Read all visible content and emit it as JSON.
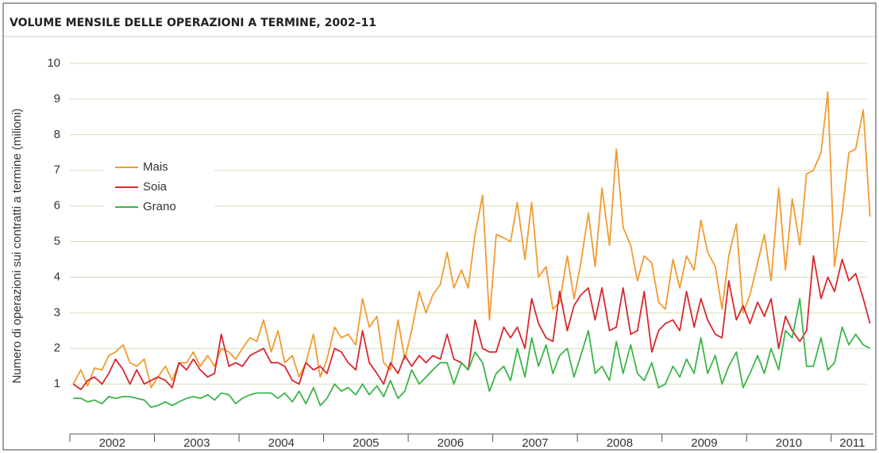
{
  "chart_data": {
    "type": "line",
    "title": "VOLUME MENSILE DELLE OPERAZIONI A TERMINE, 2002–11",
    "y_label": "Numero di operazioni sui contratti a termine (milioni)",
    "x": [
      2002.04,
      2002.13,
      2002.21,
      2002.29,
      2002.38,
      2002.46,
      2002.54,
      2002.63,
      2002.71,
      2002.79,
      2002.88,
      2002.96,
      2003.04,
      2003.13,
      2003.21,
      2003.29,
      2003.38,
      2003.46,
      2003.54,
      2003.63,
      2003.71,
      2003.79,
      2003.88,
      2003.96,
      2004.04,
      2004.13,
      2004.21,
      2004.29,
      2004.38,
      2004.46,
      2004.54,
      2004.63,
      2004.71,
      2004.79,
      2004.88,
      2004.96,
      2005.04,
      2005.13,
      2005.21,
      2005.29,
      2005.38,
      2005.46,
      2005.54,
      2005.63,
      2005.71,
      2005.79,
      2005.88,
      2005.96,
      2006.04,
      2006.13,
      2006.21,
      2006.29,
      2006.38,
      2006.46,
      2006.54,
      2006.63,
      2006.71,
      2006.79,
      2006.88,
      2006.96,
      2007.04,
      2007.13,
      2007.21,
      2007.29,
      2007.38,
      2007.46,
      2007.54,
      2007.63,
      2007.71,
      2007.79,
      2007.88,
      2007.96,
      2008.04,
      2008.13,
      2008.21,
      2008.29,
      2008.38,
      2008.46,
      2008.54,
      2008.63,
      2008.71,
      2008.79,
      2008.88,
      2008.96,
      2009.04,
      2009.13,
      2009.21,
      2009.29,
      2009.38,
      2009.46,
      2009.54,
      2009.63,
      2009.71,
      2009.79,
      2009.88,
      2009.96,
      2010.04,
      2010.13,
      2010.21,
      2010.29,
      2010.38,
      2010.46,
      2010.54,
      2010.63,
      2010.71,
      2010.79,
      2010.88,
      2010.96,
      2011.04,
      2011.13,
      2011.21,
      2011.29,
      2011.38,
      2011.46
    ],
    "series": [
      {
        "name": "Mais",
        "color": "#f29b30",
        "values": [
          1.0,
          1.4,
          0.95,
          1.45,
          1.4,
          1.8,
          1.9,
          2.1,
          1.6,
          1.5,
          1.7,
          0.9,
          1.2,
          1.5,
          1.1,
          1.6,
          1.6,
          1.9,
          1.5,
          1.8,
          1.5,
          2.0,
          1.9,
          1.7,
          2.0,
          2.3,
          2.2,
          2.8,
          1.9,
          2.5,
          1.6,
          1.8,
          1.2,
          1.6,
          2.4,
          1.2,
          1.7,
          2.6,
          2.3,
          2.4,
          2.1,
          3.4,
          2.6,
          2.9,
          1.6,
          1.4,
          2.8,
          1.7,
          2.5,
          3.6,
          3.0,
          3.5,
          3.8,
          4.7,
          3.7,
          4.2,
          3.7,
          5.2,
          6.3,
          2.8,
          5.2,
          5.1,
          5.0,
          6.1,
          4.5,
          6.1,
          4.0,
          4.3,
          3.1,
          3.3,
          4.6,
          3.4,
          4.4,
          5.8,
          4.3,
          6.5,
          4.9,
          7.6,
          5.4,
          4.9,
          3.9,
          4.6,
          4.4,
          3.3,
          3.1,
          4.5,
          3.7,
          4.6,
          4.2,
          5.6,
          4.7,
          4.3,
          3.1,
          4.6,
          5.5,
          3.0,
          3.5,
          4.4,
          5.2,
          3.9,
          6.5,
          4.2,
          6.2,
          4.9,
          6.9,
          7.0,
          7.5,
          9.2,
          4.3,
          5.8,
          7.5,
          7.6,
          8.7,
          5.7
        ]
      },
      {
        "name": "Soia",
        "color": "#d9282f",
        "values": [
          1.0,
          0.85,
          1.1,
          1.2,
          1.0,
          1.3,
          1.7,
          1.4,
          1.0,
          1.4,
          1.0,
          1.1,
          1.2,
          1.1,
          0.9,
          1.6,
          1.4,
          1.7,
          1.4,
          1.2,
          1.3,
          2.4,
          1.5,
          1.6,
          1.5,
          1.8,
          1.9,
          2.0,
          1.6,
          1.6,
          1.5,
          1.1,
          1.0,
          1.6,
          1.4,
          1.5,
          1.3,
          2.0,
          1.9,
          1.6,
          1.4,
          2.5,
          1.6,
          1.3,
          1.0,
          1.6,
          1.3,
          1.8,
          1.5,
          1.8,
          1.6,
          1.8,
          1.7,
          2.4,
          1.7,
          1.6,
          1.4,
          2.8,
          2.0,
          1.9,
          1.9,
          2.6,
          2.3,
          2.6,
          2.0,
          3.4,
          2.7,
          2.3,
          2.2,
          3.6,
          2.5,
          3.2,
          3.5,
          3.7,
          2.8,
          3.7,
          2.5,
          2.6,
          3.7,
          2.4,
          2.5,
          3.6,
          1.9,
          2.5,
          2.7,
          2.8,
          2.5,
          3.6,
          2.6,
          3.4,
          2.8,
          2.4,
          2.3,
          3.9,
          2.8,
          3.2,
          2.7,
          3.3,
          2.9,
          3.4,
          2.0,
          2.9,
          2.5,
          2.2,
          2.5,
          4.6,
          3.4,
          4.0,
          3.6,
          4.5,
          3.9,
          4.1,
          3.4,
          2.7
        ]
      },
      {
        "name": "Grano",
        "color": "#3cb44b",
        "values": [
          0.6,
          0.6,
          0.5,
          0.55,
          0.45,
          0.65,
          0.6,
          0.65,
          0.65,
          0.6,
          0.55,
          0.35,
          0.4,
          0.5,
          0.4,
          0.5,
          0.6,
          0.65,
          0.6,
          0.7,
          0.55,
          0.75,
          0.7,
          0.45,
          0.6,
          0.7,
          0.75,
          0.75,
          0.75,
          0.6,
          0.75,
          0.5,
          0.8,
          0.45,
          0.9,
          0.4,
          0.6,
          1.0,
          0.8,
          0.9,
          0.7,
          1.0,
          0.7,
          0.95,
          0.65,
          1.1,
          0.6,
          0.8,
          1.4,
          1.0,
          1.2,
          1.4,
          1.6,
          1.6,
          1.0,
          1.6,
          1.4,
          1.9,
          1.6,
          0.8,
          1.3,
          1.5,
          1.1,
          2.0,
          1.2,
          2.3,
          1.5,
          2.1,
          1.3,
          1.8,
          2.0,
          1.2,
          1.8,
          2.5,
          1.3,
          1.5,
          1.1,
          2.2,
          1.3,
          2.1,
          1.3,
          1.1,
          1.6,
          0.9,
          1.0,
          1.5,
          1.2,
          1.7,
          1.3,
          2.3,
          1.3,
          1.8,
          1.0,
          1.5,
          1.9,
          0.9,
          1.3,
          1.8,
          1.3,
          2.0,
          1.4,
          2.5,
          2.3,
          3.4,
          1.5,
          1.5,
          2.3,
          1.4,
          1.6,
          2.6,
          2.1,
          2.4,
          2.1,
          2.0
        ]
      }
    ],
    "xlim": [
      2002,
      2011.5
    ],
    "xticks": [
      2002,
      2003,
      2004,
      2005,
      2006,
      2007,
      2008,
      2009,
      2010,
      2011
    ],
    "ylim": [
      -0.4,
      10
    ],
    "yticks": [
      1,
      2,
      3,
      4,
      5,
      6,
      7,
      8,
      9,
      10
    ],
    "grid": true,
    "grid_color": "#cfe0b8",
    "legend": "upper left"
  }
}
